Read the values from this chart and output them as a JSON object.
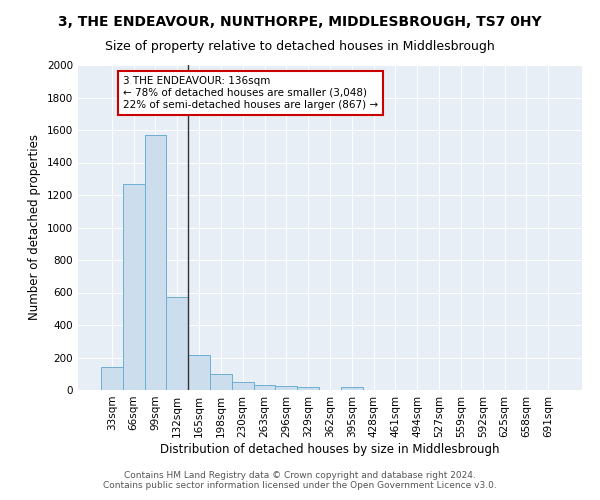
{
  "title": "3, THE ENDEAVOUR, NUNTHORPE, MIDDLESBROUGH, TS7 0HY",
  "subtitle": "Size of property relative to detached houses in Middlesbrough",
  "xlabel": "Distribution of detached houses by size in Middlesbrough",
  "ylabel": "Number of detached properties",
  "bar_color": "#ccdded",
  "bar_edge_color": "#6aafd4",
  "background_color": "#e8eef5",
  "categories": [
    "33sqm",
    "66sqm",
    "99sqm",
    "132sqm",
    "165sqm",
    "198sqm",
    "230sqm",
    "263sqm",
    "296sqm",
    "329sqm",
    "362sqm",
    "395sqm",
    "428sqm",
    "461sqm",
    "494sqm",
    "527sqm",
    "559sqm",
    "592sqm",
    "625sqm",
    "658sqm",
    "691sqm"
  ],
  "values": [
    140,
    1270,
    1570,
    570,
    215,
    100,
    50,
    30,
    25,
    20,
    0,
    20,
    0,
    0,
    0,
    0,
    0,
    0,
    0,
    0,
    0
  ],
  "vline_x": 3.5,
  "vline_color": "#333333",
  "annotation_text": "3 THE ENDEAVOUR: 136sqm\n← 78% of detached houses are smaller (3,048)\n22% of semi-detached houses are larger (867) →",
  "annotation_box_color": "#ffffff",
  "annotation_box_edge_color": "#cc0000",
  "ylim": [
    0,
    2000
  ],
  "yticks": [
    0,
    200,
    400,
    600,
    800,
    1000,
    1200,
    1400,
    1600,
    1800,
    2000
  ],
  "footer": "Contains HM Land Registry data © Crown copyright and database right 2024.\nContains public sector information licensed under the Open Government Licence v3.0.",
  "title_fontsize": 10,
  "subtitle_fontsize": 9,
  "xlabel_fontsize": 8.5,
  "ylabel_fontsize": 8.5,
  "tick_fontsize": 7.5,
  "annotation_fontsize": 7.5,
  "footer_fontsize": 6.5
}
